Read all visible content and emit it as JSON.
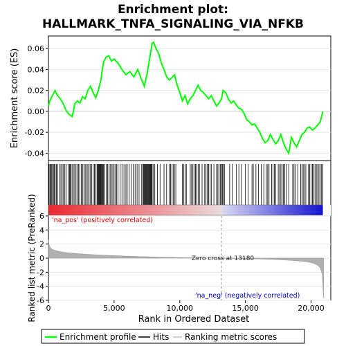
{
  "chart_data": {
    "type": "line",
    "title_line1": "Enrichment plot:",
    "title_line2": "HALLMARK_TNFA_SIGNALING_VIA_NFKB",
    "colors": {
      "es_line": "#00ff00",
      "hits": "#000000",
      "metric_fill": "#b0b0b0",
      "pos_label": "#e00000",
      "neg_label": "#0000cc",
      "zero_line": "#aaaaaa",
      "axis": "#000000"
    },
    "es_panel": {
      "ylabel": "Enrichment score (ES)",
      "ylim": [
        -0.047,
        0.072
      ],
      "yticks": [
        0.06,
        0.04,
        0.02,
        0.0,
        -0.02,
        -0.04
      ],
      "ytick_labels": [
        "0.06",
        "0.04",
        "0.02",
        "0.00",
        "-0.02",
        "-0.04"
      ],
      "x": [
        0,
        100,
        300,
        500,
        700,
        900,
        1100,
        1300,
        1500,
        1700,
        1800,
        1900,
        2000,
        2200,
        2400,
        2600,
        2800,
        3000,
        3200,
        3400,
        3600,
        3800,
        4000,
        4100,
        4200,
        4400,
        4600,
        4800,
        5000,
        5300,
        5600,
        5900,
        6200,
        6500,
        6800,
        7100,
        7300,
        7500,
        7700,
        7900,
        8000,
        8200,
        8400,
        8600,
        8800,
        9000,
        9200,
        9400,
        9600,
        9800,
        10000,
        10200,
        10400,
        10600,
        10800,
        11000,
        11200,
        11400,
        11600,
        11800,
        12000,
        12200,
        12400,
        12600,
        12800,
        13000,
        13180,
        13300,
        13500,
        13700,
        13900,
        14100,
        14300,
        14500,
        14700,
        14900,
        15100,
        15300,
        15500,
        15700,
        15900,
        16100,
        16300,
        16500,
        16700,
        16900,
        17100,
        17300,
        17500,
        17700,
        17900,
        18100,
        18300,
        18500,
        18700,
        18900,
        19100,
        19300,
        19500,
        19700,
        19900,
        20100,
        20300,
        20500,
        20700,
        20900
      ],
      "values": [
        0.005,
        0.01,
        0.015,
        0.02,
        0.015,
        0.012,
        0.008,
        0.002,
        -0.002,
        -0.004,
        -0.005,
        0.0,
        0.007,
        0.01,
        0.008,
        0.014,
        0.012,
        0.02,
        0.024,
        0.018,
        0.013,
        0.02,
        0.03,
        0.04,
        0.047,
        0.052,
        0.053,
        0.048,
        0.05,
        0.046,
        0.04,
        0.035,
        0.038,
        0.033,
        0.04,
        0.03,
        0.024,
        0.035,
        0.05,
        0.065,
        0.066,
        0.06,
        0.055,
        0.046,
        0.04,
        0.033,
        0.03,
        0.032,
        0.035,
        0.025,
        0.018,
        0.01,
        0.015,
        0.007,
        0.012,
        0.015,
        0.02,
        0.025,
        0.02,
        0.018,
        0.015,
        0.012,
        0.015,
        0.01,
        0.005,
        0.008,
        0.012,
        0.02,
        0.018,
        0.012,
        0.008,
        0.01,
        0.006,
        0.003,
        0.002,
        -0.002,
        -0.008,
        -0.01,
        -0.013,
        -0.012,
        -0.016,
        -0.02,
        -0.026,
        -0.03,
        -0.028,
        -0.022,
        -0.027,
        -0.031,
        -0.028,
        -0.022,
        -0.03,
        -0.036,
        -0.04,
        -0.025,
        -0.03,
        -0.034,
        -0.028,
        -0.022,
        -0.02,
        -0.016,
        -0.015,
        -0.018,
        -0.016,
        -0.013,
        -0.01,
        0.0
      ]
    },
    "hits": [
      50,
      120,
      180,
      250,
      320,
      380,
      450,
      520,
      600,
      700,
      850,
      950,
      1050,
      1150,
      1250,
      1350,
      1500,
      1600,
      1650,
      1700,
      1800,
      1900,
      2000,
      2100,
      2200,
      2300,
      2400,
      2500,
      2600,
      2700,
      2800,
      2900,
      3000,
      3100,
      3200,
      3300,
      3400,
      3500,
      3600,
      3700,
      3750,
      3800,
      3850,
      3900,
      3950,
      4000,
      4050,
      4100,
      4150,
      4200,
      4300,
      4400,
      4500,
      4600,
      4700,
      4800,
      4900,
      5000,
      5100,
      5200,
      5300,
      5450,
      5600,
      5750,
      5900,
      6000,
      6150,
      6300,
      6450,
      6600,
      6750,
      6900,
      7100,
      7200,
      7250,
      7300,
      7350,
      7400,
      7450,
      7500,
      7550,
      7600,
      7650,
      7700,
      7750,
      7800,
      7850,
      7900,
      8000,
      8100,
      8300,
      8500,
      8800,
      9000,
      9200,
      9300,
      9400,
      9500,
      9600,
      9700,
      10200,
      10300,
      10400,
      10500,
      10800,
      10900,
      11000,
      11100,
      11200,
      11300,
      11400,
      11500,
      11700,
      11900,
      12000,
      12100,
      12200,
      12300,
      12400,
      12600,
      12800,
      12900,
      13000,
      13100,
      13200,
      13250,
      13300,
      13400,
      13800,
      14000,
      14300,
      14500,
      14700,
      15000,
      15200,
      15500,
      15600,
      15800,
      16000,
      16200,
      16400,
      16600,
      16700,
      16800,
      17000,
      17100,
      17200,
      17300,
      17500,
      17600,
      17700,
      17800,
      17900,
      18000,
      18100,
      18300,
      18600,
      18700,
      18800,
      19000,
      19200,
      19300,
      19400,
      19500,
      19600,
      19800,
      19900,
      20000,
      20100,
      20200,
      20300,
      20400,
      20500,
      20600,
      20700,
      20800,
      20900
    ],
    "gradient_ticks": [
      0,
      5000,
      10000,
      15000,
      20000
    ],
    "metric_panel": {
      "ylabel": "Ranked list metric (PreRanked)",
      "ylim": [
        -6,
        6
      ],
      "yticks": [
        6,
        4,
        2,
        0,
        -2,
        -4,
        -6
      ],
      "ytick_labels": [
        "6",
        "4",
        "2",
        "0",
        "-2",
        "-4",
        "-6"
      ],
      "x": [
        0,
        50,
        150,
        300,
        500,
        800,
        1200,
        1800,
        2500,
        3500,
        5000,
        7000,
        9000,
        11000,
        13180,
        15000,
        16500,
        17500,
        18500,
        19200,
        19800,
        20200,
        20500,
        20700,
        20850,
        20950
      ],
      "values": [
        2.6,
        1.9,
        1.5,
        1.25,
        1.1,
        0.95,
        0.82,
        0.7,
        0.6,
        0.48,
        0.35,
        0.22,
        0.12,
        0.05,
        0.0,
        -0.08,
        -0.15,
        -0.22,
        -0.32,
        -0.42,
        -0.55,
        -0.75,
        -1.0,
        -1.4,
        -2.3,
        -5.7
      ],
      "pos_label": "'na_pos' (positively correlated)",
      "neg_label": "'na_neg' (negatively correlated)",
      "zero_cross_label": "Zero cross at 13180",
      "zero_cross": 13180
    },
    "xaxis": {
      "xlabel": "Rank in Ordered Dataset",
      "xlim": [
        0,
        21500
      ],
      "xticks": [
        0,
        5000,
        10000,
        15000,
        20000
      ],
      "xtick_labels": [
        "0",
        "5,000",
        "10,000",
        "15,000",
        "20,000"
      ]
    },
    "legend": {
      "position": "bottom",
      "items": [
        {
          "label": "Enrichment profile",
          "color": "#00ff00"
        },
        {
          "label": "Hits",
          "color": "#000000"
        },
        {
          "label": "Ranking metric scores",
          "color": "#c0c0c0"
        }
      ]
    }
  }
}
